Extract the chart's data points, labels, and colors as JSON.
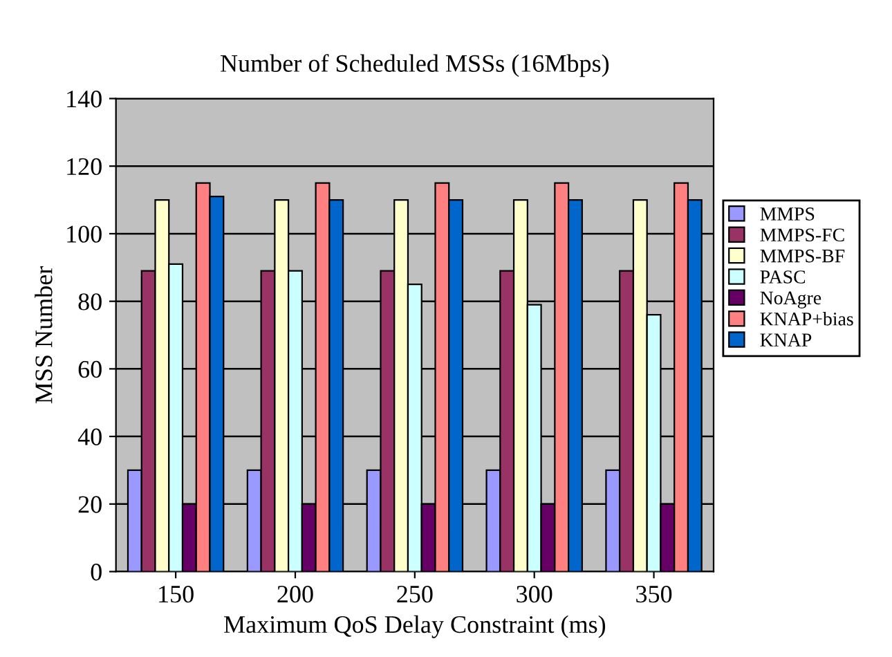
{
  "chart_data": {
    "type": "bar",
    "title": "Number of Scheduled MSSs (16Mbps)",
    "xlabel": "Maximum QoS Delay Constraint (ms)",
    "ylabel": "MSS Number",
    "categories": [
      "150",
      "200",
      "250",
      "300",
      "350"
    ],
    "series": [
      {
        "name": "MMPS",
        "color": "#9999ff",
        "values": [
          30,
          30,
          30,
          30,
          30
        ]
      },
      {
        "name": "MMPS-FC",
        "color": "#993366",
        "values": [
          89,
          89,
          89,
          89,
          89
        ]
      },
      {
        "name": "MMPS-BF",
        "color": "#ffffcc",
        "values": [
          110,
          110,
          110,
          110,
          110
        ]
      },
      {
        "name": "PASC",
        "color": "#ccffff",
        "values": [
          91,
          89,
          85,
          79,
          76
        ]
      },
      {
        "name": "NoAgre",
        "color": "#660066",
        "values": [
          20,
          20,
          20,
          20,
          20
        ]
      },
      {
        "name": "KNAP+bias",
        "color": "#ff8080",
        "values": [
          115,
          115,
          115,
          115,
          115
        ]
      },
      {
        "name": "KNAP",
        "color": "#0066cc",
        "values": [
          111,
          110,
          110,
          110,
          110
        ]
      }
    ],
    "ylim": [
      0,
      140
    ],
    "yticks": [
      0,
      20,
      40,
      60,
      80,
      100,
      120,
      140
    ],
    "grid": "y",
    "legend": "right"
  }
}
